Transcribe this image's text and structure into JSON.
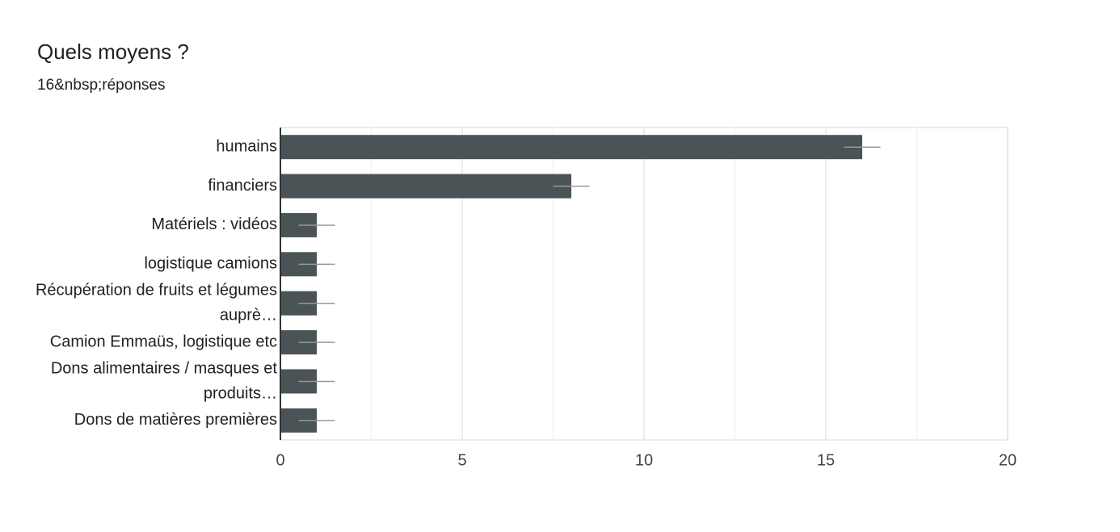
{
  "chart_data": {
    "type": "bar",
    "orientation": "horizontal",
    "title": "Quels moyens ?",
    "subtitle": "16&nbsp;réponses",
    "categories": [
      "humains",
      "financiers",
      "Matériels : vidéos",
      "logistique camions",
      "Récupération de fruits et légumes auprè…",
      "Camion Emmaüs, logistique etc",
      "Dons alimentaires / masques et produits…",
      "Dons de matières premières"
    ],
    "values": [
      16,
      8,
      1,
      1,
      1,
      1,
      1,
      1
    ],
    "errors": [
      0.5,
      0.5,
      0.5,
      0.5,
      0.5,
      0.5,
      0.5,
      0.5
    ],
    "color": "#4a5355",
    "error_color": "#999999",
    "xlim": [
      0,
      20
    ],
    "xticks": [
      0,
      5,
      10,
      15,
      20
    ],
    "minor_grid": [
      2.5,
      7.5,
      12.5,
      17.5
    ],
    "grid": true
  }
}
